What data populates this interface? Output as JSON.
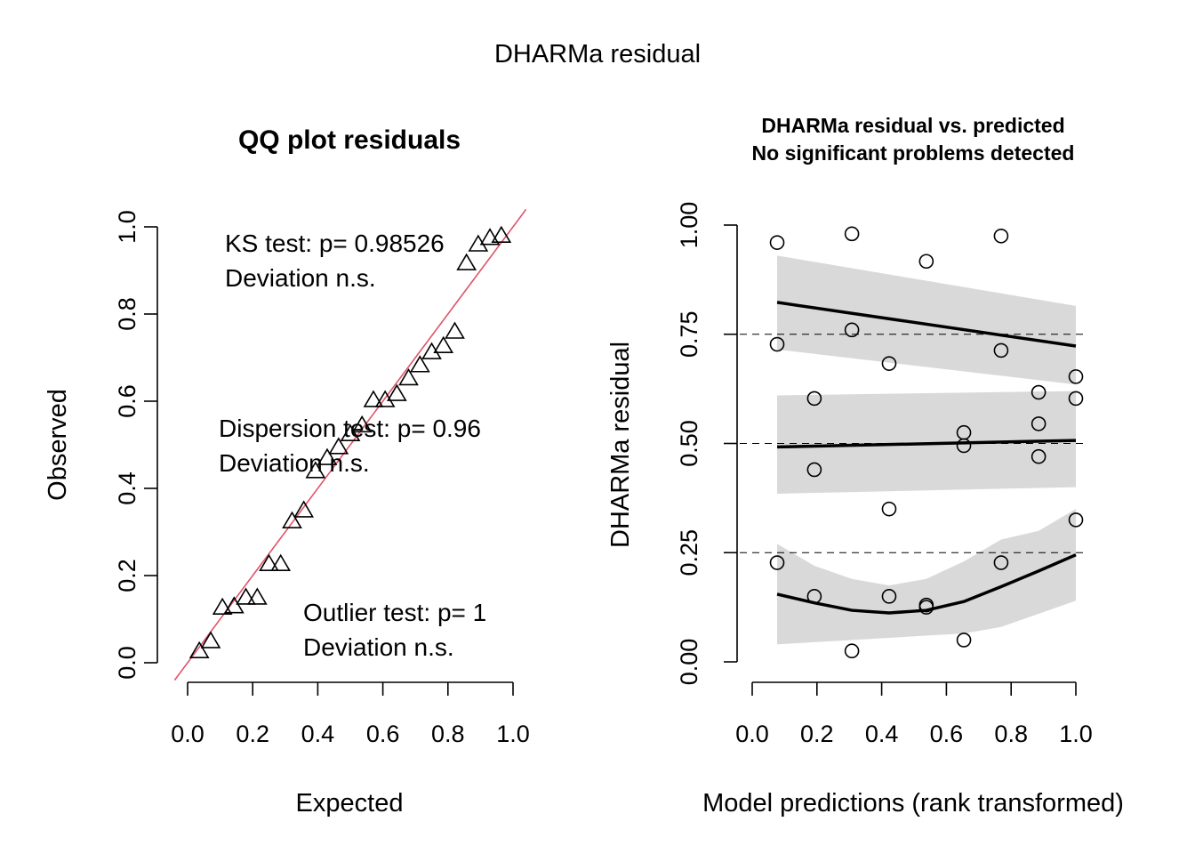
{
  "figure": {
    "title": "DHARMa residual"
  },
  "chart_data": [
    {
      "type": "scatter",
      "title": "QQ plot residuals",
      "xlabel": "Expected",
      "ylabel": "Observed",
      "xlim": [
        0,
        1
      ],
      "ylim": [
        0,
        1
      ],
      "xticks": [
        "0.0",
        "0.2",
        "0.4",
        "0.6",
        "0.8",
        "1.0"
      ],
      "yticks": [
        "0.0",
        "0.2",
        "0.4",
        "0.6",
        "0.8",
        "1.0"
      ],
      "marker": "triangle",
      "reference_line": {
        "slope": 1,
        "intercept": 0,
        "color": "#df536b"
      },
      "expected": [
        0.036,
        0.071,
        0.107,
        0.143,
        0.179,
        0.214,
        0.25,
        0.286,
        0.321,
        0.357,
        0.393,
        0.429,
        0.464,
        0.5,
        0.536,
        0.571,
        0.607,
        0.643,
        0.679,
        0.714,
        0.75,
        0.786,
        0.821,
        0.857,
        0.893,
        0.929,
        0.964
      ],
      "observed": [
        0.027,
        0.05,
        0.127,
        0.13,
        0.15,
        0.15,
        0.227,
        0.227,
        0.325,
        0.35,
        0.44,
        0.47,
        0.495,
        0.525,
        0.545,
        0.603,
        0.603,
        0.617,
        0.653,
        0.683,
        0.713,
        0.727,
        0.76,
        0.917,
        0.96,
        0.975,
        0.98
      ],
      "annotations": [
        {
          "lines": [
            "KS test: p= 0.98526",
            "Deviation  n.s."
          ]
        },
        {
          "lines": [
            "Dispersion test: p= 0.96",
            "Deviation  n.s."
          ]
        },
        {
          "lines": [
            "Outlier test: p= 1",
            "Deviation  n.s."
          ]
        }
      ]
    },
    {
      "type": "scatter",
      "title": "DHARMa residual vs. predicted",
      "subtitle": "No significant problems detected",
      "xlabel": "Model predictions (rank transformed)",
      "ylabel": "DHARMa residual",
      "xlim": [
        0,
        1
      ],
      "ylim": [
        0,
        1
      ],
      "xticks": [
        "0.0",
        "0.2",
        "0.4",
        "0.6",
        "0.8",
        "1.0"
      ],
      "yticks": [
        "0.00",
        "0.25",
        "0.50",
        "0.75",
        "1.00"
      ],
      "marker": "circle",
      "reference_levels": [
        0.25,
        0.5,
        0.75
      ],
      "points": {
        "x": [
          0.077,
          0.077,
          0.077,
          0.192,
          0.192,
          0.192,
          0.308,
          0.308,
          0.308,
          0.423,
          0.423,
          0.423,
          0.538,
          0.538,
          0.538,
          0.654,
          0.654,
          0.654,
          0.769,
          0.769,
          0.769,
          0.885,
          0.885,
          0.885,
          1.0,
          1.0,
          1.0
        ],
        "y": [
          0.96,
          0.727,
          0.227,
          0.603,
          0.44,
          0.15,
          0.98,
          0.76,
          0.025,
          0.683,
          0.35,
          0.15,
          0.917,
          0.13,
          0.125,
          0.525,
          0.495,
          0.05,
          0.975,
          0.713,
          0.227,
          0.617,
          0.545,
          0.47,
          0.653,
          0.603,
          0.325
        ]
      },
      "quantile_fits": [
        {
          "quantile": 0.25,
          "x": [
            0.077,
            0.192,
            0.308,
            0.423,
            0.538,
            0.654,
            0.769,
            0.885,
            1.0
          ],
          "y": [
            0.155,
            0.135,
            0.118,
            0.112,
            0.118,
            0.138,
            0.172,
            0.208,
            0.245
          ],
          "lower": [
            0.04,
            0.045,
            0.05,
            0.055,
            0.06,
            0.065,
            0.08,
            0.11,
            0.14
          ],
          "upper": [
            0.27,
            0.22,
            0.19,
            0.175,
            0.19,
            0.23,
            0.28,
            0.3,
            0.35
          ]
        },
        {
          "quantile": 0.5,
          "x": [
            0.077,
            1.0
          ],
          "y": [
            0.492,
            0.507
          ],
          "lower": [
            0.385,
            0.4
          ],
          "upper": [
            0.61,
            0.62
          ]
        },
        {
          "quantile": 0.75,
          "x": [
            0.077,
            1.0
          ],
          "y": [
            0.823,
            0.723
          ],
          "lower": [
            0.715,
            0.635
          ],
          "upper": [
            0.93,
            0.815
          ]
        }
      ]
    }
  ]
}
